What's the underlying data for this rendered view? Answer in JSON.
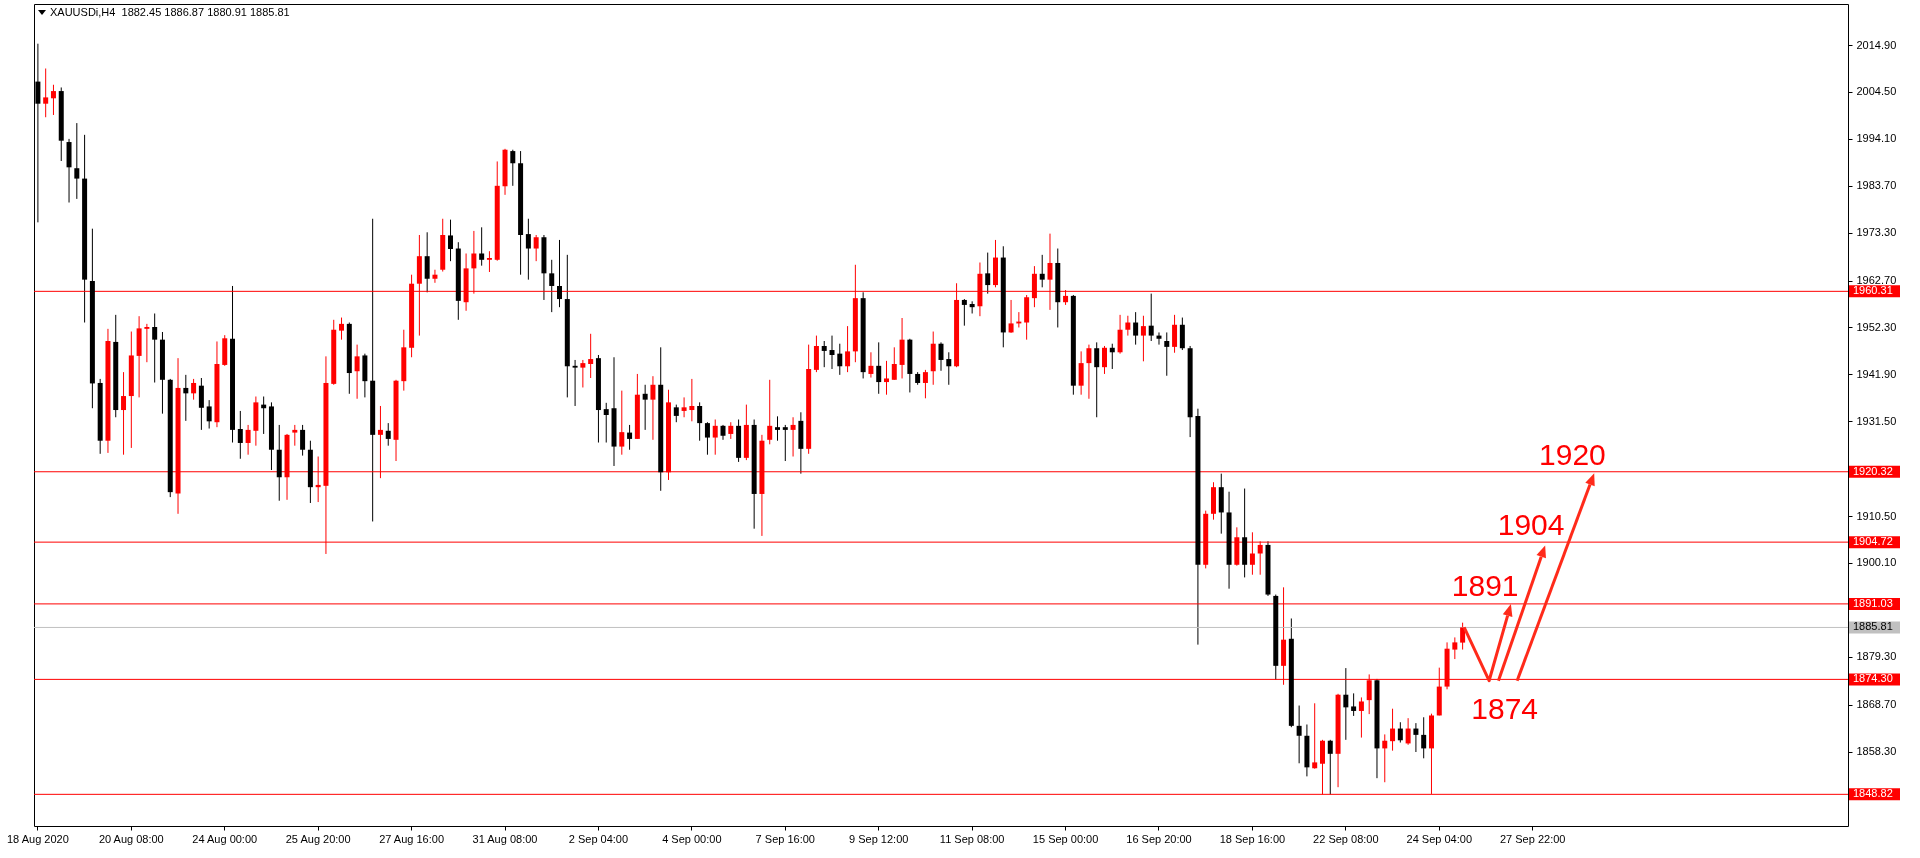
{
  "chart_data": {
    "type": "candlestick",
    "title": "XAUUSDi,H4  1882.45 1886.87 1880.91 1885.81",
    "categories": [
      "18 Aug 2020",
      null,
      null,
      null,
      null,
      null,
      null,
      null,
      null,
      null,
      null,
      null,
      "20 Aug 08:00",
      null,
      null,
      null,
      null,
      null,
      null,
      null,
      null,
      null,
      null,
      null,
      "24 Aug 00:00",
      null,
      null,
      null,
      null,
      null,
      null,
      null,
      null,
      null,
      null,
      null,
      "25 Aug 20:00",
      null,
      null,
      null,
      null,
      null,
      null,
      null,
      null,
      null,
      null,
      null,
      "27 Aug 16:00",
      null,
      null,
      null,
      null,
      null,
      null,
      null,
      null,
      null,
      null,
      null,
      "31 Aug 08:00",
      null,
      null,
      null,
      null,
      null,
      null,
      null,
      null,
      null,
      null,
      null,
      "2 Sep 04:00",
      null,
      null,
      null,
      null,
      null,
      null,
      null,
      null,
      null,
      null,
      null,
      "4 Sep 00:00",
      null,
      null,
      null,
      null,
      null,
      null,
      null,
      null,
      null,
      null,
      null,
      "7 Sep 16:00",
      null,
      null,
      null,
      null,
      null,
      null,
      null,
      null,
      null,
      null,
      null,
      "9 Sep 12:00",
      null,
      null,
      null,
      null,
      null,
      null,
      null,
      null,
      null,
      null,
      null,
      "11 Sep 08:00",
      null,
      null,
      null,
      null,
      null,
      null,
      null,
      null,
      null,
      null,
      null,
      "15 Sep 00:00",
      null,
      null,
      null,
      null,
      null,
      null,
      null,
      null,
      null,
      null,
      null,
      "16 Sep 20:00",
      null,
      null,
      null,
      null,
      null,
      null,
      null,
      null,
      null,
      null,
      null,
      "18 Sep 16:00",
      null,
      null,
      null,
      null,
      null,
      null,
      null,
      null,
      null,
      null,
      null,
      "22 Sep 08:00",
      null,
      null,
      null,
      null,
      null,
      null,
      null,
      null,
      null,
      null,
      null,
      "24 Sep 04:00",
      null,
      null,
      null,
      null,
      null,
      null,
      null,
      null,
      null,
      null,
      null,
      "27 Sep 22:00",
      null,
      null,
      null,
      null,
      null,
      null,
      null,
      null,
      null,
      null,
      null,
      null,
      null,
      null,
      null,
      null,
      null,
      null,
      null,
      null,
      null,
      null,
      null,
      null,
      null,
      null,
      null,
      null,
      null,
      null,
      null,
      null,
      null,
      null,
      null,
      null,
      null,
      null,
      null,
      null
    ],
    "ohlc": [
      [
        2006.8,
        2015.2,
        1975.6,
        2001.9
      ],
      [
        2001.9,
        2009.7,
        1998.9,
        2003.3
      ],
      [
        2003.1,
        2006.1,
        1999.4,
        2004.7
      ],
      [
        2004.7,
        2005.5,
        1989.2,
        1993.7
      ],
      [
        1993.4,
        1994.1,
        1980.0,
        1987.8
      ],
      [
        1987.6,
        1997.6,
        1980.8,
        1985.3
      ],
      [
        1985.3,
        1995.0,
        1953.4,
        1962.9
      ],
      [
        1962.6,
        1974.2,
        1934.4,
        1939.9
      ],
      [
        1940.0,
        1940.9,
        1924.3,
        1927.2
      ],
      [
        1927.2,
        1952.0,
        1924.5,
        1949.3
      ],
      [
        1949.1,
        1955.1,
        1932.4,
        1934.0
      ],
      [
        1934.0,
        1942.4,
        1924.1,
        1937.1
      ],
      [
        1937.1,
        1951.4,
        1925.6,
        1946.1
      ],
      [
        1946.0,
        1954.8,
        1936.8,
        1952.1
      ],
      [
        1952.0,
        1953.1,
        1944.6,
        1952.4
      ],
      [
        1952.4,
        1955.4,
        1940.1,
        1949.6
      ],
      [
        1949.6,
        1951.3,
        1933.2,
        1940.7
      ],
      [
        1940.7,
        1940.9,
        1914.7,
        1915.8
      ],
      [
        1915.5,
        1945.5,
        1911.0,
        1938.9
      ],
      [
        1938.9,
        1941.8,
        1931.6,
        1937.7
      ],
      [
        1937.7,
        1940.9,
        1936.3,
        1940.0
      ],
      [
        1939.4,
        1941.1,
        1929.6,
        1934.5
      ],
      [
        1934.8,
        1936.2,
        1929.9,
        1931.5
      ],
      [
        1931.3,
        1949.2,
        1930.2,
        1944.2
      ],
      [
        1944.0,
        1950.6,
        1943.8,
        1949.9
      ],
      [
        1949.8,
        1961.5,
        1926.8,
        1929.6
      ],
      [
        1929.8,
        1933.8,
        1923.2,
        1926.7
      ],
      [
        1926.7,
        1930.7,
        1924.1,
        1929.6
      ],
      [
        1929.4,
        1937.0,
        1926.1,
        1935.7
      ],
      [
        1935.2,
        1937.0,
        1928.7,
        1934.4
      ],
      [
        1934.8,
        1935.7,
        1920.7,
        1925.2
      ],
      [
        1925.2,
        1930.7,
        1913.9,
        1919.1
      ],
      [
        1919.1,
        1928.7,
        1914.1,
        1928.5
      ],
      [
        1929.0,
        1930.7,
        1926.1,
        1929.6
      ],
      [
        1929.6,
        1930.7,
        1923.9,
        1925.2
      ],
      [
        1925.2,
        1927.2,
        1913.4,
        1916.9
      ],
      [
        1916.9,
        1923.7,
        1913.6,
        1917.4
      ],
      [
        1917.2,
        1945.9,
        1902.1,
        1940.0
      ],
      [
        1939.8,
        1954.0,
        1939.6,
        1951.8
      ],
      [
        1951.6,
        1954.5,
        1949.6,
        1953.1
      ],
      [
        1953.1,
        1953.4,
        1937.6,
        1942.2
      ],
      [
        1942.6,
        1948.5,
        1936.5,
        1945.9
      ],
      [
        1946.1,
        1946.5,
        1936.8,
        1940.4
      ],
      [
        1940.5,
        1976.4,
        1909.3,
        1928.5
      ],
      [
        1928.5,
        1934.9,
        1918.9,
        1929.6
      ],
      [
        1929.4,
        1931.1,
        1926.1,
        1927.6
      ],
      [
        1927.4,
        1940.7,
        1922.7,
        1940.5
      ],
      [
        1940.4,
        1951.8,
        1938.3,
        1947.9
      ],
      [
        1947.8,
        1964.0,
        1945.7,
        1962.0
      ],
      [
        1962.0,
        1972.8,
        1950.5,
        1968.1
      ],
      [
        1968.1,
        1973.4,
        1960.1,
        1963.1
      ],
      [
        1963.1,
        1965.1,
        1962.2,
        1964.0
      ],
      [
        1965.1,
        1976.4,
        1964.7,
        1972.8
      ],
      [
        1972.7,
        1976.2,
        1967.0,
        1969.7
      ],
      [
        1969.8,
        1971.2,
        1954.0,
        1958.2
      ],
      [
        1957.9,
        1968.7,
        1956.0,
        1965.4
      ],
      [
        1965.4,
        1973.7,
        1959.8,
        1968.7
      ],
      [
        1968.7,
        1974.5,
        1966.0,
        1967.3
      ],
      [
        1967.3,
        1969.2,
        1964.6,
        1967.7
      ],
      [
        1967.3,
        1989.1,
        1967.1,
        1983.7
      ],
      [
        1983.6,
        1991.9,
        1981.7,
        1991.7
      ],
      [
        1991.4,
        1991.7,
        1983.7,
        1988.7
      ],
      [
        1988.7,
        1991.4,
        1964.0,
        1972.8
      ],
      [
        1973.0,
        1976.4,
        1962.9,
        1969.8
      ],
      [
        1969.8,
        1972.8,
        1967.0,
        1972.3
      ],
      [
        1972.3,
        1972.8,
        1958.4,
        1964.3
      ],
      [
        1964.3,
        1967.3,
        1955.7,
        1961.5
      ],
      [
        1961.5,
        1971.7,
        1956.8,
        1958.6
      ],
      [
        1958.6,
        1968.4,
        1936.8,
        1943.7
      ],
      [
        1943.8,
        1945.1,
        1934.9,
        1943.4
      ],
      [
        1943.4,
        1945.1,
        1939.0,
        1944.4
      ],
      [
        1944.2,
        1950.9,
        1941.1,
        1945.3
      ],
      [
        1945.5,
        1946.2,
        1926.8,
        1934.0
      ],
      [
        1934.2,
        1935.6,
        1926.8,
        1932.9
      ],
      [
        1934.4,
        1945.7,
        1921.6,
        1925.9
      ],
      [
        1925.9,
        1938.3,
        1924.1,
        1929.1
      ],
      [
        1929.0,
        1930.7,
        1925.2,
        1927.6
      ],
      [
        1927.6,
        1942.0,
        1927.6,
        1937.4
      ],
      [
        1937.6,
        1939.6,
        1929.6,
        1936.3
      ],
      [
        1936.3,
        1941.5,
        1927.4,
        1939.6
      ],
      [
        1939.6,
        1947.9,
        1916.1,
        1920.2
      ],
      [
        1920.2,
        1938.5,
        1918.5,
        1935.7
      ],
      [
        1934.6,
        1935.2,
        1931.3,
        1932.7
      ],
      [
        1933.8,
        1936.8,
        1932.4,
        1934.6
      ],
      [
        1934.0,
        1940.9,
        1931.5,
        1934.9
      ],
      [
        1934.9,
        1935.7,
        1927.2,
        1931.1
      ],
      [
        1931.1,
        1931.3,
        1924.1,
        1927.9
      ],
      [
        1927.9,
        1931.9,
        1924.1,
        1930.5
      ],
      [
        1930.5,
        1930.7,
        1927.4,
        1928.3
      ],
      [
        1928.7,
        1931.3,
        1927.6,
        1930.5
      ],
      [
        1930.5,
        1931.9,
        1922.5,
        1923.4
      ],
      [
        1923.4,
        1935.2,
        1922.9,
        1930.7
      ],
      [
        1930.7,
        1931.9,
        1907.7,
        1915.4
      ],
      [
        1915.4,
        1928.5,
        1906.1,
        1927.2
      ],
      [
        1927.4,
        1940.7,
        1926.4,
        1930.5
      ],
      [
        1930.2,
        1932.6,
        1927.2,
        1929.6
      ],
      [
        1930.2,
        1930.7,
        1922.7,
        1929.6
      ],
      [
        1929.6,
        1932.4,
        1923.7,
        1930.7
      ],
      [
        1931.6,
        1933.5,
        1919.9,
        1925.4
      ],
      [
        1925.4,
        1948.5,
        1924.3,
        1943.1
      ],
      [
        1942.9,
        1950.5,
        1942.4,
        1948.2
      ],
      [
        1948.2,
        1949.3,
        1943.5,
        1947.1
      ],
      [
        1947.3,
        1950.5,
        1943.1,
        1946.2
      ],
      [
        1946.5,
        1948.7,
        1941.8,
        1943.7
      ],
      [
        1943.7,
        1952.6,
        1942.4,
        1947.0
      ],
      [
        1947.0,
        1966.2,
        1944.6,
        1958.8
      ],
      [
        1958.8,
        1960.1,
        1941.0,
        1942.4
      ],
      [
        1942.0,
        1946.8,
        1941.2,
        1943.8
      ],
      [
        1943.8,
        1949.0,
        1937.6,
        1940.2
      ],
      [
        1940.2,
        1944.9,
        1937.4,
        1941.0
      ],
      [
        1940.7,
        1947.9,
        1940.7,
        1944.2
      ],
      [
        1944.0,
        1954.4,
        1941.0,
        1949.6
      ],
      [
        1949.6,
        1949.8,
        1937.9,
        1942.0
      ],
      [
        1942.0,
        1942.4,
        1939.6,
        1940.0
      ],
      [
        1940.0,
        1942.9,
        1936.6,
        1942.4
      ],
      [
        1942.6,
        1951.4,
        1939.6,
        1948.7
      ],
      [
        1948.7,
        1949.0,
        1942.7,
        1945.1
      ],
      [
        1945.3,
        1946.8,
        1939.6,
        1943.7
      ],
      [
        1943.7,
        1962.1,
        1943.5,
        1958.4
      ],
      [
        1958.4,
        1958.6,
        1952.7,
        1957.3
      ],
      [
        1957.5,
        1958.1,
        1955.4,
        1956.8
      ],
      [
        1957.0,
        1966.7,
        1954.8,
        1964.2
      ],
      [
        1964.3,
        1968.9,
        1959.8,
        1961.7
      ],
      [
        1961.7,
        1971.7,
        1961.2,
        1967.8
      ],
      [
        1967.8,
        1970.3,
        1947.9,
        1951.2
      ],
      [
        1951.2,
        1958.4,
        1951.1,
        1953.2
      ],
      [
        1953.2,
        1955.7,
        1952.3,
        1953.6
      ],
      [
        1953.4,
        1959.5,
        1949.6,
        1959.0
      ],
      [
        1958.8,
        1965.9,
        1956.8,
        1964.2
      ],
      [
        1964.2,
        1968.4,
        1961.2,
        1962.9
      ],
      [
        1962.9,
        1973.1,
        1956.2,
        1966.6
      ],
      [
        1966.6,
        1969.8,
        1952.3,
        1957.9
      ],
      [
        1957.9,
        1960.6,
        1957.3,
        1959.3
      ],
      [
        1959.3,
        1959.5,
        1937.4,
        1939.4
      ],
      [
        1939.4,
        1947.0,
        1937.4,
        1944.4
      ],
      [
        1944.4,
        1948.5,
        1936.5,
        1947.7
      ],
      [
        1947.7,
        1949.0,
        1932.4,
        1943.5
      ],
      [
        1943.5,
        1948.2,
        1942.0,
        1947.8
      ],
      [
        1947.8,
        1948.7,
        1943.1,
        1946.8
      ],
      [
        1946.8,
        1955.1,
        1946.5,
        1951.8
      ],
      [
        1951.8,
        1954.9,
        1950.5,
        1953.4
      ],
      [
        1953.4,
        1955.7,
        1948.5,
        1950.5
      ],
      [
        1950.5,
        1954.9,
        1944.8,
        1952.6
      ],
      [
        1952.7,
        1959.8,
        1949.3,
        1950.5
      ],
      [
        1950.5,
        1951.2,
        1948.5,
        1949.8
      ],
      [
        1949.3,
        1951.2,
        1941.6,
        1948.0
      ],
      [
        1948.0,
        1955.1,
        1946.7,
        1952.9
      ],
      [
        1952.9,
        1954.5,
        1947.3,
        1947.7
      ],
      [
        1947.7,
        1948.2,
        1928.0,
        1932.4
      ],
      [
        1932.7,
        1934.3,
        1882.0,
        1899.7
      ],
      [
        1899.7,
        1911.7,
        1898.9,
        1911.0
      ],
      [
        1911.0,
        1918.0,
        1909.7,
        1916.9
      ],
      [
        1916.9,
        1919.9,
        1906.6,
        1911.3
      ],
      [
        1911.3,
        1915.9,
        1894.4,
        1899.7
      ],
      [
        1899.7,
        1908.0,
        1899.5,
        1905.8
      ],
      [
        1905.8,
        1916.6,
        1896.9,
        1899.7
      ],
      [
        1899.7,
        1906.9,
        1897.5,
        1902.2
      ],
      [
        1902.2,
        1904.9,
        1897.5,
        1904.1
      ],
      [
        1904.1,
        1904.9,
        1892.8,
        1893.1
      ],
      [
        1892.8,
        1893.1,
        1874.2,
        1877.3
      ],
      [
        1877.3,
        1894.7,
        1873.1,
        1883.1
      ],
      [
        1883.3,
        1887.8,
        1863.7,
        1864.0
      ],
      [
        1864.0,
        1868.5,
        1855.7,
        1861.8
      ],
      [
        1861.8,
        1864.3,
        1852.8,
        1854.8
      ],
      [
        1854.6,
        1869.0,
        1854.5,
        1855.9
      ],
      [
        1855.6,
        1860.9,
        1848.8,
        1860.7
      ],
      [
        1860.7,
        1860.9,
        1848.8,
        1857.8
      ],
      [
        1857.8,
        1871.1,
        1850.4,
        1870.9
      ],
      [
        1870.9,
        1876.8,
        1860.9,
        1868.1
      ],
      [
        1868.3,
        1871.2,
        1866.2,
        1867.3
      ],
      [
        1867.3,
        1870.3,
        1861.4,
        1869.4
      ],
      [
        1869.7,
        1875.4,
        1866.6,
        1874.1
      ],
      [
        1874.1,
        1874.4,
        1852.4,
        1859.0
      ],
      [
        1859.0,
        1862.1,
        1851.5,
        1860.7
      ],
      [
        1860.6,
        1867.8,
        1858.5,
        1863.4
      ],
      [
        1863.4,
        1864.8,
        1860.3,
        1860.8
      ],
      [
        1860.1,
        1865.7,
        1859.8,
        1863.4
      ],
      [
        1863.4,
        1864.6,
        1858.2,
        1862.0
      ],
      [
        1862.0,
        1865.9,
        1856.8,
        1859.0
      ],
      [
        1859.0,
        1866.7,
        1848.9,
        1866.3
      ],
      [
        1866.3,
        1876.9,
        1866.3,
        1872.7
      ],
      [
        1872.7,
        1882.5,
        1872.1,
        1881.1
      ],
      [
        1880.9,
        1883.6,
        1878.8,
        1882.5
      ],
      [
        1882.45,
        1886.87,
        1880.91,
        1885.81
      ],
      null,
      null,
      null,
      null,
      null,
      null,
      null,
      null,
      null,
      null,
      null,
      null,
      null,
      null,
      null,
      null,
      null,
      null,
      null,
      null,
      null,
      null,
      null,
      null,
      null,
      null,
      null,
      null,
      null,
      null,
      null,
      null,
      null,
      null,
      null,
      null,
      null,
      null,
      null,
      null,
      null,
      null,
      null,
      null,
      null,
      null,
      null,
      null,
      null
    ],
    "colors": [
      "#000000",
      "#ff0000",
      "#ff0000",
      "#000000",
      "#000000",
      "#000000",
      "#000000",
      "#000000",
      "#000000",
      "#ff0000",
      "#000000",
      "#ff0000",
      "#ff0000",
      "#ff0000",
      "#ff0000",
      "#000000",
      "#000000",
      "#000000",
      "#ff0000",
      "#000000",
      "#ff0000",
      "#000000",
      "#000000",
      "#ff0000",
      "#ff0000",
      "#000000",
      "#000000",
      "#ff0000",
      "#ff0000",
      "#000000",
      "#000000",
      "#000000",
      "#ff0000",
      "#ff0000",
      "#000000",
      "#000000",
      "#ff0000",
      "#ff0000",
      "#ff0000",
      "#ff0000",
      "#000000",
      "#ff0000",
      "#000000",
      "#000000",
      "#ff0000",
      "#000000",
      "#ff0000",
      "#ff0000",
      "#ff0000",
      "#ff0000",
      "#000000",
      "#ff0000",
      "#ff0000",
      "#000000",
      "#000000",
      "#ff0000",
      "#ff0000",
      "#000000",
      "#ff0000",
      "#ff0000",
      "#ff0000",
      "#000000",
      "#000000",
      "#000000",
      "#ff0000",
      "#000000",
      "#000000",
      "#000000",
      "#000000",
      "#000000",
      "#ff0000",
      "#ff0000",
      "#000000",
      "#000000",
      "#000000",
      "#ff0000",
      "#000000",
      "#ff0000",
      "#000000",
      "#ff0000",
      "#000000",
      "#ff0000",
      "#000000",
      "#ff0000",
      "#ff0000",
      "#000000",
      "#000000",
      "#ff0000",
      "#000000",
      "#ff0000",
      "#000000",
      "#ff0000",
      "#000000",
      "#ff0000",
      "#ff0000",
      "#000000",
      "#000000",
      "#ff0000",
      "#000000",
      "#ff0000",
      "#ff0000",
      "#000000",
      "#000000",
      "#000000",
      "#ff0000",
      "#ff0000",
      "#000000",
      "#ff0000",
      "#000000",
      "#ff0000",
      "#ff0000",
      "#ff0000",
      "#000000",
      "#000000",
      "#ff0000",
      "#ff0000",
      "#000000",
      "#000000",
      "#ff0000",
      "#000000",
      "#000000",
      "#ff0000",
      "#000000",
      "#ff0000",
      "#000000",
      "#ff0000",
      "#ff0000",
      "#ff0000",
      "#ff0000",
      "#000000",
      "#ff0000",
      "#000000",
      "#ff0000",
      "#000000",
      "#ff0000",
      "#ff0000",
      "#000000",
      "#ff0000",
      "#000000",
      "#ff0000",
      "#ff0000",
      "#000000",
      "#ff0000",
      "#000000",
      "#000000",
      "#000000",
      "#ff0000",
      "#000000",
      "#000000",
      "#000000",
      "#ff0000",
      "#ff0000",
      "#000000",
      "#000000",
      "#ff0000",
      "#000000",
      "#ff0000",
      "#ff0000",
      "#000000",
      "#000000",
      "#ff0000",
      "#000000",
      "#000000",
      "#000000",
      "#ff0000",
      "#ff0000",
      "#000000",
      "#ff0000",
      "#000000",
      "#000000",
      "#ff0000",
      "#ff0000",
      "#000000",
      "#ff0000",
      "#ff0000",
      "#000000",
      "#ff0000",
      "#000000",
      "#000000",
      "#ff0000",
      "#ff0000",
      "#ff0000",
      "#ff0000",
      "#ff0000",
      null,
      null,
      null,
      null,
      null,
      null,
      null,
      null,
      null,
      null,
      null,
      null,
      null,
      null,
      null,
      null,
      null,
      null,
      null,
      null,
      null,
      null,
      null,
      null,
      null,
      null,
      null,
      null,
      null,
      null,
      null,
      null,
      null,
      null,
      null,
      null,
      null,
      null,
      null,
      null,
      null,
      null,
      null,
      null,
      null,
      null,
      null,
      null,
      null
    ],
    "ylim": [
      1841.8,
      2024.0
    ],
    "yticks": [
      {
        "value": 2014.9,
        "label": "2014.90"
      },
      {
        "value": 2004.5,
        "label": "2004.50"
      },
      {
        "value": 1994.1,
        "label": "1994.10"
      },
      {
        "value": 1983.7,
        "label": "1983.70"
      },
      {
        "value": 1973.3,
        "label": "1973.30"
      },
      {
        "value": 1962.7,
        "label": "1962.70"
      },
      {
        "value": 1952.3,
        "label": "1952.30"
      },
      {
        "value": 1941.9,
        "label": "1941.90"
      },
      {
        "value": 1931.5,
        "label": "1931.50"
      },
      {
        "value": 1910.5,
        "label": "1910.50"
      },
      {
        "value": 1900.1,
        "label": "1900.10"
      },
      {
        "value": 1879.3,
        "label": "1879.30"
      },
      {
        "value": 1868.7,
        "label": "1868.70"
      },
      {
        "value": 1858.3,
        "label": "1858.30"
      }
    ],
    "ref_lines": [
      {
        "axis": "y",
        "value": 1960.31,
        "label": "1960.31",
        "color": "#ff0000"
      },
      {
        "axis": "y",
        "value": 1920.32,
        "label": "1920.32",
        "color": "#ff0000"
      },
      {
        "axis": "y",
        "value": 1904.72,
        "label": "1904.72",
        "color": "#ff0000"
      },
      {
        "axis": "y",
        "value": 1891.03,
        "label": "1891.03",
        "color": "#ff0000"
      },
      {
        "axis": "y",
        "value": 1885.81,
        "label": "1885.81",
        "color": "#c0c0c0"
      },
      {
        "axis": "y",
        "value": 1874.3,
        "label": "1874.30",
        "color": "#ff0000"
      },
      {
        "axis": "y",
        "value": 1848.82,
        "label": "1848.82",
        "color": "#ff0000"
      }
    ],
    "annotations": [
      {
        "text": "1920",
        "y": 1920
      },
      {
        "text": "1904",
        "y": 1904
      },
      {
        "text": "1891",
        "y": 1891
      },
      {
        "text": "1874",
        "y": 1874
      }
    ],
    "grid": false
  }
}
